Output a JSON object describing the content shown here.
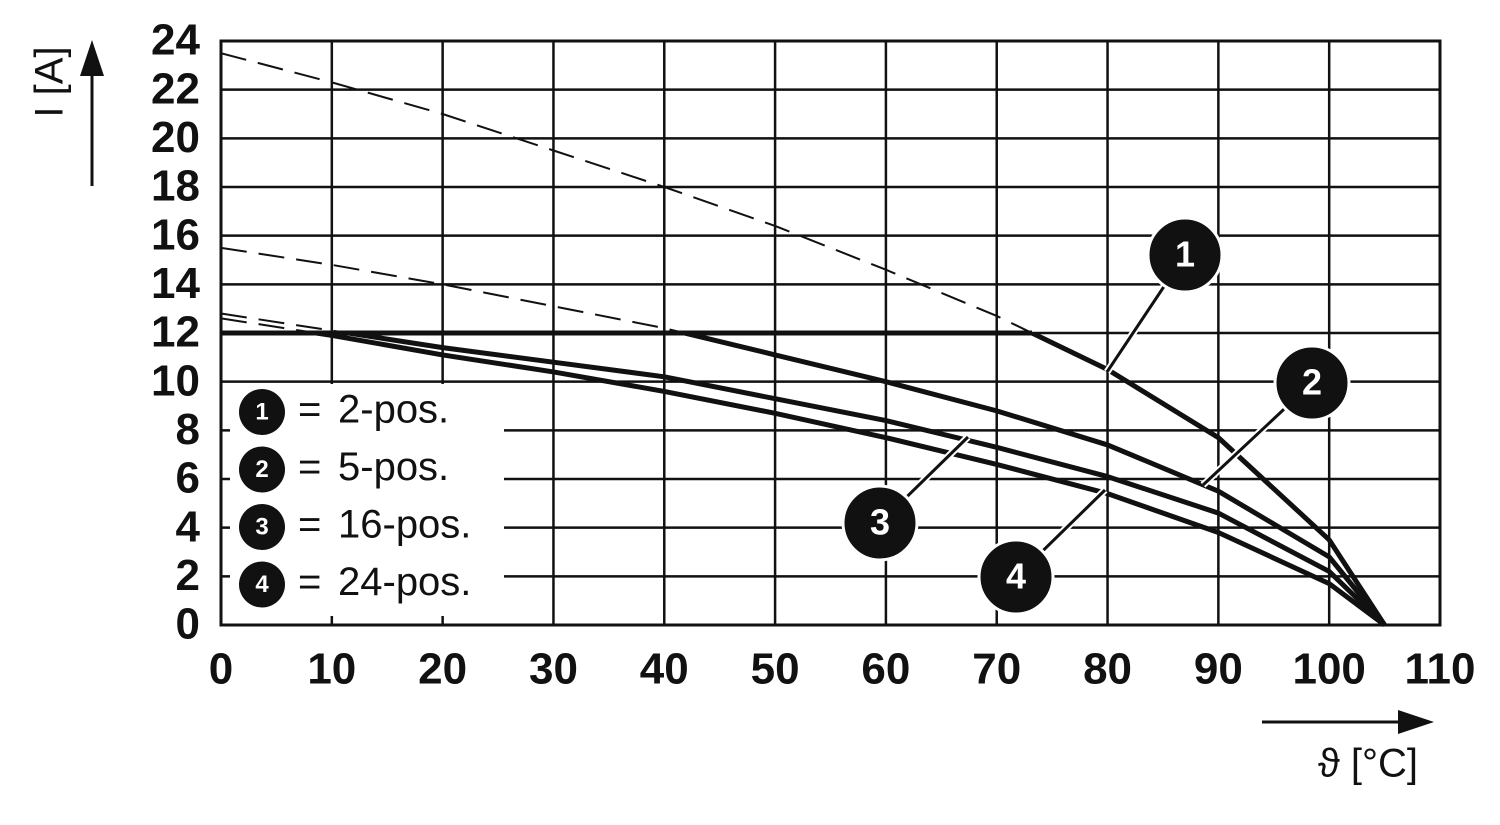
{
  "chart_data": {
    "type": "line",
    "y_label": "I [A]",
    "x_label": "ϑ [°C]",
    "x": [
      0,
      10,
      20,
      30,
      40,
      50,
      60,
      70,
      80,
      90,
      100,
      105
    ],
    "xlim": [
      0,
      110
    ],
    "xticks": [
      0,
      10,
      20,
      30,
      40,
      50,
      60,
      70,
      80,
      90,
      100,
      110
    ],
    "ylim": [
      0,
      24
    ],
    "yticks": [
      0,
      2,
      4,
      6,
      8,
      10,
      12,
      14,
      16,
      18,
      20,
      22,
      24
    ],
    "grid": true,
    "limit": 12,
    "legend_separator": "=",
    "series": [
      {
        "name": "2-pos.",
        "marker": "1",
        "color": "#111111",
        "values": [
          23.5,
          22.3,
          21,
          19.5,
          18,
          16.4,
          14.6,
          12.7,
          10.5,
          7.7,
          3.5,
          0
        ]
      },
      {
        "name": "5-pos.",
        "marker": "2",
        "color": "#111111",
        "values": [
          15.5,
          14.8,
          14,
          13.1,
          12.2,
          11.1,
          10,
          8.8,
          7.4,
          5.5,
          2.8,
          0
        ]
      },
      {
        "name": "16-pos.",
        "marker": "3",
        "color": "#111111",
        "values": [
          12.8,
          12.1,
          11.4,
          10.8,
          10.2,
          9.3,
          8.4,
          7.3,
          6.1,
          4.6,
          2.2,
          0
        ]
      },
      {
        "name": "24-pos.",
        "marker": "4",
        "color": "#111111",
        "values": [
          12.6,
          11.9,
          11.1,
          10.4,
          9.6,
          8.7,
          7.7,
          6.6,
          5.4,
          3.8,
          1.7,
          0
        ]
      }
    ]
  }
}
